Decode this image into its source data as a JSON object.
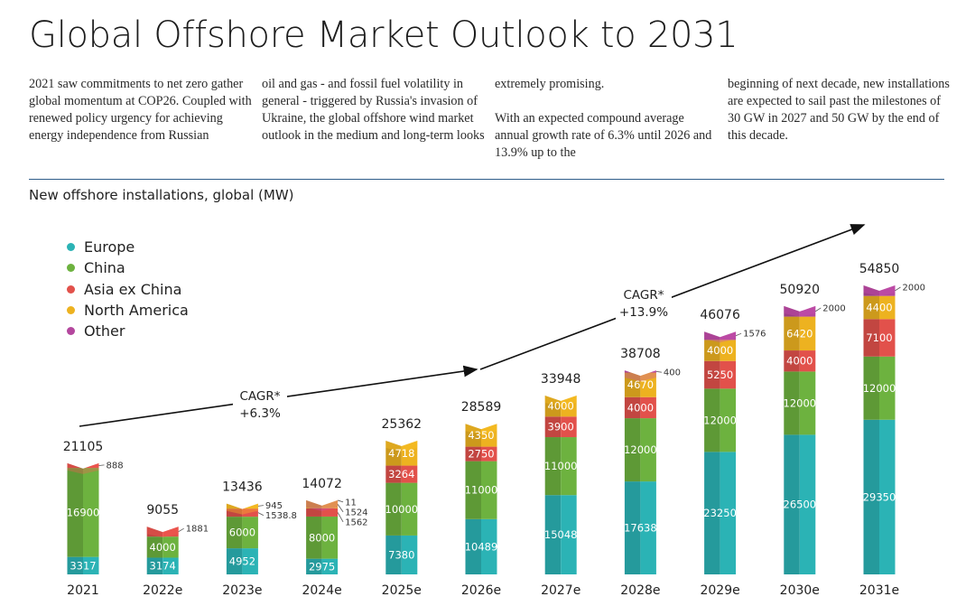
{
  "title": "Global Offshore Market Outlook to 2031",
  "intro": [
    "2021 saw commitments to net zero gather global momentum at COP26. Coupled with renewed policy urgency for achieving energy independence from Russian",
    "oil and gas - and fossil fuel volatility in general - triggered by Russia's invasion of Ukraine, the global offshore wind market outlook in the medium and long-term looks",
    "extremely promising.\n\nWith an expected compound average annual growth rate of 6.3% until 2026 and 13.9% up to the",
    "beginning of next decade, new installations are expected to sail past the milestones of 30 GW in 2027 and 50 GW by the end of this decade."
  ],
  "chart_data": {
    "type": "bar",
    "stacked": true,
    "title": "New offshore installations, global (MW)",
    "categories": [
      "2021",
      "2022e",
      "2023e",
      "2024e",
      "2025e",
      "2026e",
      "2027e",
      "2028e",
      "2029e",
      "2030e",
      "2031e"
    ],
    "series": [
      {
        "name": "Europe",
        "color": "#2bb3b5",
        "values": [
          3317,
          3174,
          4952,
          2975,
          7380,
          10489,
          15048,
          17638,
          23250,
          26500,
          29350
        ],
        "labels": [
          "3317",
          "3174",
          "4952",
          "2975",
          "7380",
          "10489",
          "15048",
          "17638",
          "23250",
          "26500",
          "29350"
        ]
      },
      {
        "name": "China",
        "color": "#6db23f",
        "values": [
          16900,
          4000,
          6000,
          8000,
          10000,
          11000,
          11000,
          12000,
          12000,
          12000,
          12000
        ],
        "labels": [
          "16900",
          "4000",
          "6000",
          "8000",
          "10000",
          "11000",
          "11000",
          "12000",
          "12000",
          "12000",
          "12000"
        ]
      },
      {
        "name": "Asia ex China",
        "color": "#e2514b",
        "values": [
          888,
          1881,
          1538.8,
          1562,
          3264,
          2750,
          3900,
          4000,
          5250,
          4000,
          7100
        ],
        "labels": [
          "888",
          "1881",
          "1538.8",
          "1562",
          "3264",
          "2750",
          "3900",
          "4000",
          "5250",
          "4000",
          "7100"
        ]
      },
      {
        "name": "North America",
        "color": "#edb220",
        "values": [
          0,
          0,
          945,
          1524,
          4718,
          4350,
          4000,
          4670,
          4000,
          6420,
          4400
        ],
        "labels": [
          "",
          "",
          "945",
          "1524",
          "4718",
          "4350",
          "4000",
          "4670",
          "4000",
          "6420",
          "4400"
        ]
      },
      {
        "name": "Other",
        "color": "#b4479e",
        "values": [
          0,
          0,
          0,
          11,
          0,
          0,
          0,
          400,
          1576,
          2000,
          2000
        ],
        "labels": [
          "",
          "",
          "",
          "11",
          "",
          "",
          "",
          "400",
          "1576",
          "2000",
          "2000"
        ]
      }
    ],
    "totals": [
      "21105",
      "9055",
      "13436",
      "14072",
      "25362",
      "28589",
      "33948",
      "38708",
      "46076",
      "50920",
      "54850"
    ],
    "ylim": [
      0,
      56000
    ],
    "annotations": [
      {
        "text_line1": "CAGR*",
        "text_line2": "+6.3%",
        "from_category": "2021",
        "to_category": "2026e"
      },
      {
        "text_line1": "CAGR*",
        "text_line2": "+13.9%",
        "from_category": "2026e",
        "to_category": "2031e"
      }
    ]
  }
}
